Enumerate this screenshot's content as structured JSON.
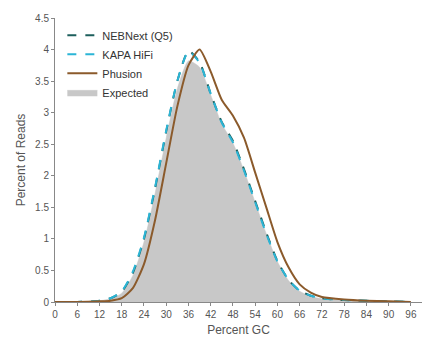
{
  "chart_data": {
    "type": "line",
    "x_label": "Percent GC",
    "y_label": "Percent of Reads",
    "x": [
      0,
      6,
      12,
      15,
      18,
      21,
      24,
      27,
      30,
      33,
      36,
      39,
      42,
      45,
      48,
      51,
      54,
      57,
      60,
      63,
      66,
      69,
      72,
      78,
      84,
      90,
      96
    ],
    "series": [
      {
        "name": "NEBNext (Q5)",
        "color": "#1d5f5c",
        "line_style": "dashed",
        "type": "line",
        "values": [
          0,
          0,
          0.02,
          0.06,
          0.16,
          0.46,
          1.0,
          1.8,
          2.7,
          3.5,
          3.98,
          3.8,
          3.3,
          2.85,
          2.55,
          2.1,
          1.6,
          1.1,
          0.65,
          0.35,
          0.18,
          0.1,
          0.06,
          0.03,
          0.02,
          0.01,
          0
        ]
      },
      {
        "name": "KAPA HiFi",
        "color": "#2bb5d6",
        "line_style": "dashed",
        "type": "line",
        "values": [
          0,
          0,
          0.02,
          0.06,
          0.17,
          0.48,
          1.02,
          1.82,
          2.72,
          3.5,
          3.97,
          3.79,
          3.3,
          2.84,
          2.53,
          2.08,
          1.58,
          1.08,
          0.64,
          0.35,
          0.18,
          0.1,
          0.06,
          0.03,
          0.02,
          0.01,
          0
        ]
      },
      {
        "name": "Phusion",
        "color": "#8b5a2b",
        "line_style": "solid",
        "type": "line",
        "values": [
          0,
          0,
          0.01,
          0.02,
          0.06,
          0.22,
          0.6,
          1.3,
          2.2,
          3.1,
          3.75,
          4.0,
          3.65,
          3.2,
          2.95,
          2.6,
          2.05,
          1.5,
          0.95,
          0.55,
          0.28,
          0.15,
          0.08,
          0.04,
          0.02,
          0.01,
          0
        ]
      },
      {
        "name": "Expected",
        "color": "#c8c8c8",
        "type": "area",
        "values": [
          0,
          0,
          0.02,
          0.05,
          0.14,
          0.42,
          0.95,
          1.72,
          2.6,
          3.38,
          3.82,
          3.72,
          3.28,
          2.82,
          2.52,
          2.08,
          1.58,
          1.08,
          0.64,
          0.34,
          0.17,
          0.09,
          0.05,
          0.03,
          0.02,
          0.01,
          0
        ]
      }
    ],
    "xlim": [
      0,
      99
    ],
    "xticks": [
      0,
      6,
      12,
      18,
      24,
      30,
      36,
      42,
      48,
      54,
      60,
      66,
      72,
      78,
      84,
      90,
      96
    ],
    "ylim": [
      0,
      4.5
    ],
    "yticks": [
      0,
      0.5,
      1,
      1.5,
      2,
      2.5,
      3,
      3.5,
      4,
      4.5
    ],
    "grid": false,
    "legend": "top-left"
  }
}
